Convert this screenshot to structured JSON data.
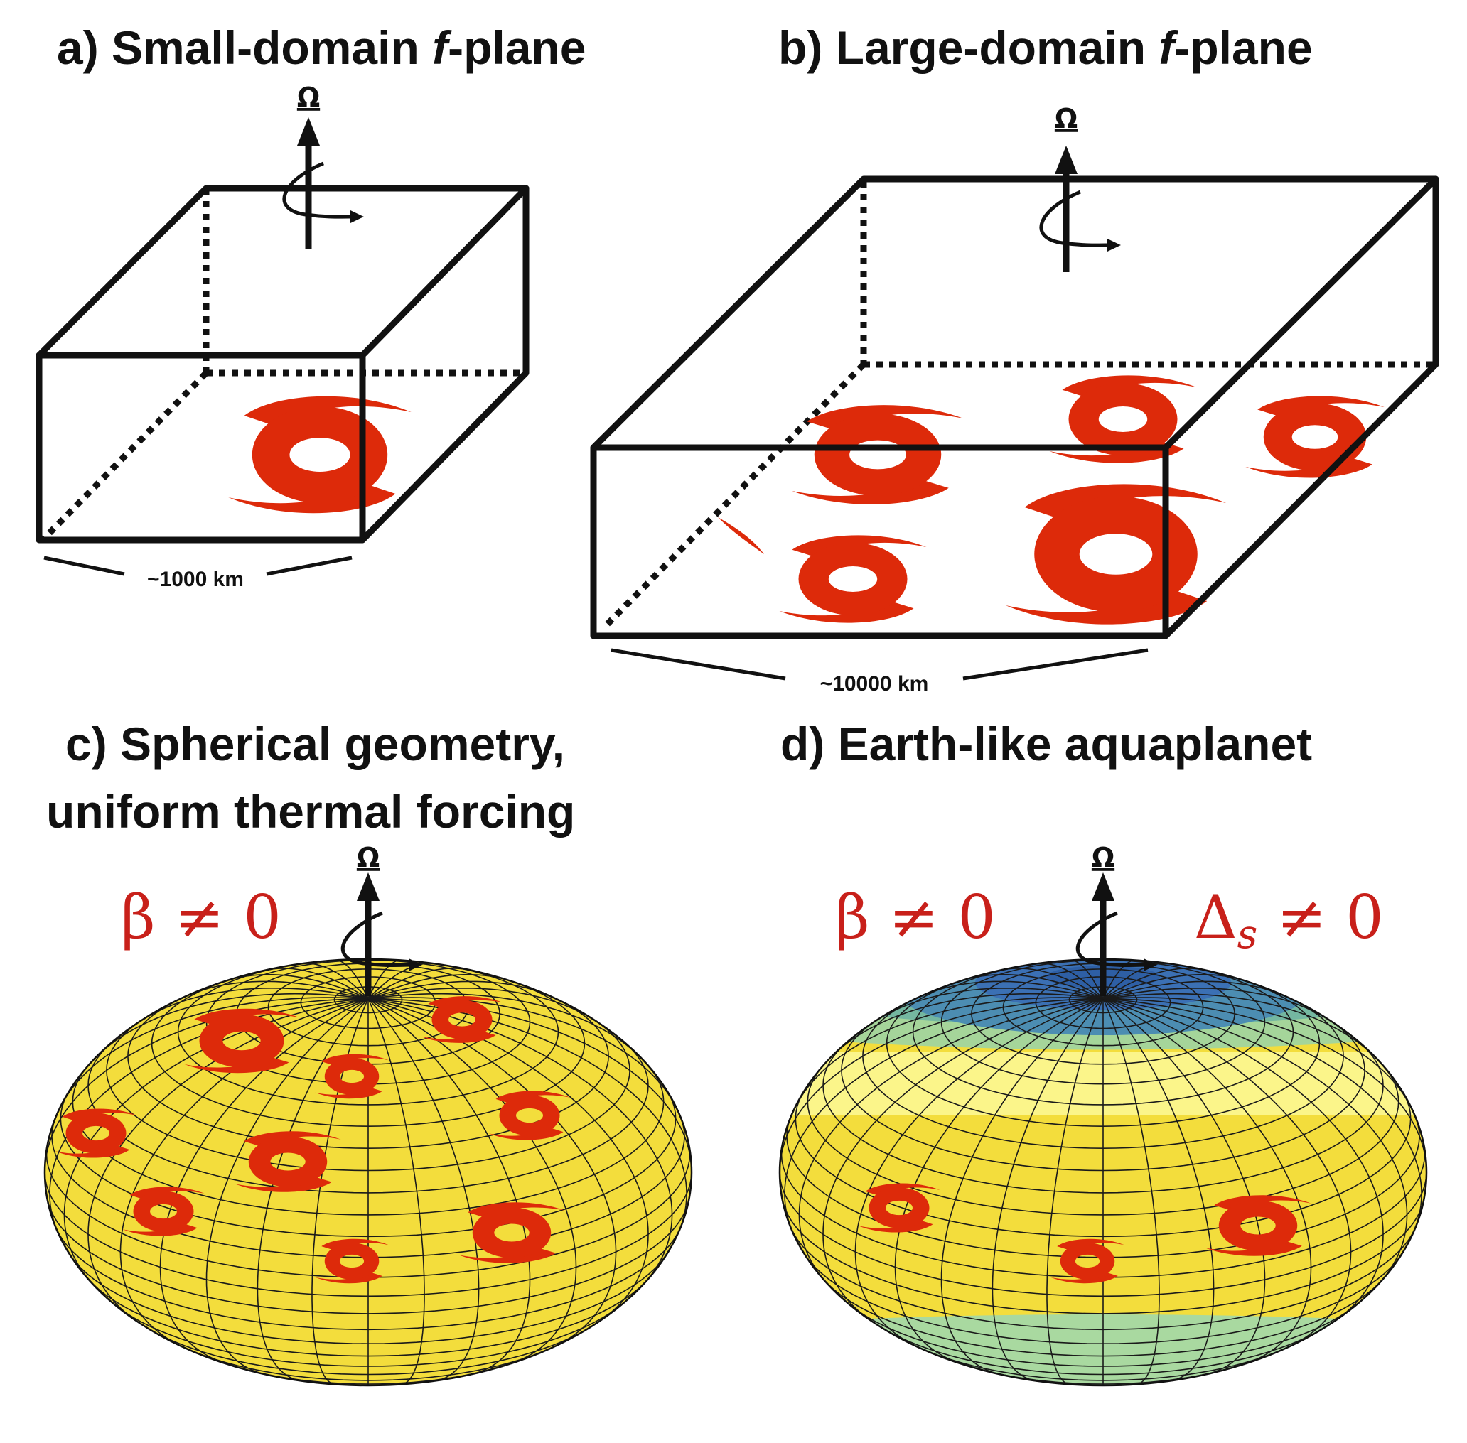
{
  "panels": {
    "a": {
      "title_prefix": "a) Small-domain ",
      "title_italic": "f",
      "title_suffix": "-plane",
      "rotation_label": "Ω",
      "scale_label": "~1000 km"
    },
    "b": {
      "title_prefix": "b) Large-domain ",
      "title_italic": "f",
      "title_suffix": "-plane",
      "rotation_label": "Ω",
      "scale_label": "~10000 km"
    },
    "c": {
      "title_line1": "c) Spherical geometry,",
      "title_line2": "uniform thermal forcing",
      "rotation_label": "Ω",
      "beta_label": "β ≠ 0"
    },
    "d": {
      "title": "d) Earth-like aquaplanet",
      "rotation_label": "Ω",
      "beta_label": "β ≠ 0",
      "delta_symbol": "Δ",
      "delta_subscript": "s",
      "delta_rest": " ≠ 0"
    }
  },
  "colors": {
    "cyclone": "#dd2a0a",
    "math_text": "#c8201a",
    "sphere_warm": "#f3dd3c",
    "sphere_pale": "#fbf58a",
    "sphere_green": "#8fcf9a",
    "sphere_teal": "#5fa6a4",
    "sphere_blue": "#3b70b4",
    "outline": "#111111"
  },
  "icons": [
    "rotation-axis-icon",
    "cyclone-icon",
    "sphere-globe-icon",
    "box-domain-icon"
  ]
}
